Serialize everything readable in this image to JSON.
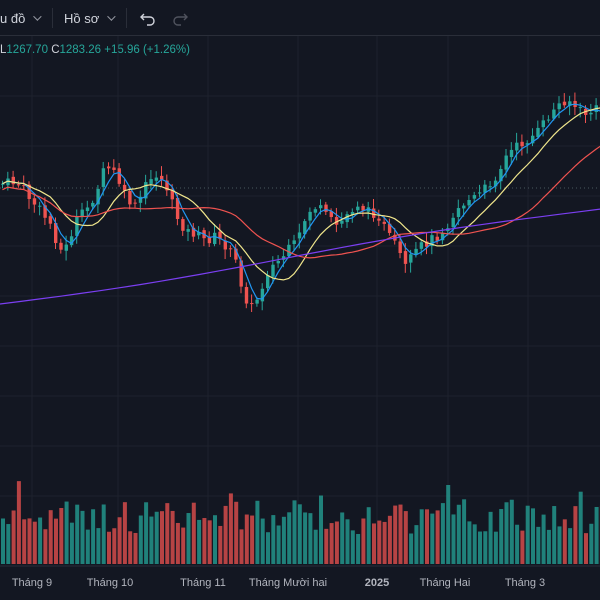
{
  "toolbar": {
    "chart_menu_label": "u đồ",
    "profile_menu_label": "Hồ sơ",
    "undo_icon": "undo-icon",
    "redo_icon": "redo-icon"
  },
  "legend": {
    "low_key": "L",
    "low_value": "1267.70",
    "close_key": "C",
    "close_value": "1283.26",
    "change": "+15.96 (+1.26%)"
  },
  "colors": {
    "background": "#131722",
    "up": "#26a69a",
    "down": "#ef5350",
    "ma_fast": "#2196f3",
    "ma_mid": "#f0e68c",
    "ma_slow": "#ef5350",
    "ma_long": "#7b3ff2"
  },
  "chart_data": {
    "type": "line",
    "description_type": "candlestick",
    "x_labels": [
      "Tháng 9",
      "Tháng 10",
      "Tháng 11",
      "Tháng Mười hai",
      "2025",
      "Tháng Hai",
      "Tháng 3"
    ],
    "grid": true,
    "last_close": 1283.26,
    "change": 15.96,
    "change_pct": 1.26
  }
}
